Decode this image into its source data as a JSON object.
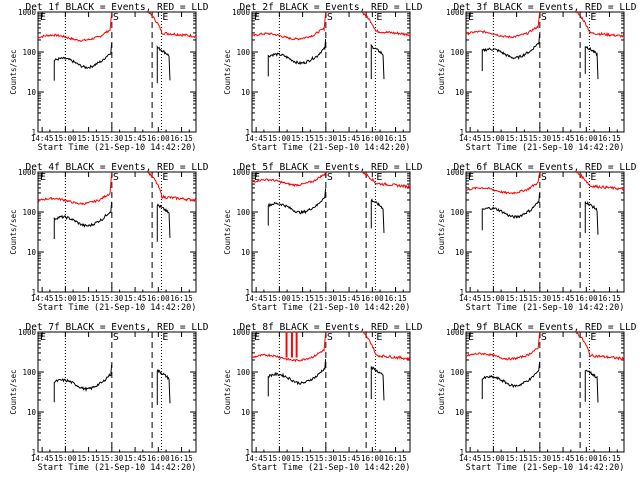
{
  "chart_data": {
    "type": "line",
    "x_axis": {
      "label": "Start Time (21-Sep-10 14:42:20)",
      "tick_labels": [
        "14:45",
        "15:00",
        "15:15",
        "15:30",
        "15:45",
        "16:00",
        "16:15"
      ],
      "tick_values_min": [
        2.67,
        17.67,
        32.67,
        47.67,
        62.67,
        77.67,
        92.67
      ],
      "range_min": [
        0,
        102
      ]
    },
    "y_axis": {
      "label": "Counts/sec",
      "scale": "log",
      "range": [
        1,
        1000
      ],
      "tick_labels": [
        "1",
        "10",
        "100",
        "1000"
      ]
    },
    "markers": {
      "eclipse_label": "E",
      "saa_label": "S",
      "dotted_min": [
        17.67,
        79.67
      ],
      "dashed_min": [
        47.67,
        73.67
      ]
    },
    "colors": {
      "events": "#000000",
      "lld": "#ff0000"
    },
    "panels": [
      {
        "title": "Det 1f BLACK = Events, RED = LLD",
        "events": {
          "base": 55,
          "peak": 130
        },
        "lld": {
          "base": 230,
          "post": 300
        }
      },
      {
        "title": "Det 2f BLACK = Events, RED = LLD",
        "events": {
          "base": 70,
          "peak": 140
        },
        "lld": {
          "base": 250,
          "post": 330
        }
      },
      {
        "title": "Det 3f BLACK = Events, RED = LLD",
        "events": {
          "base": 95,
          "peak": 140
        },
        "lld": {
          "base": 280,
          "post": 300
        }
      },
      {
        "title": "Det 4f BLACK = Events, RED = LLD",
        "events": {
          "base": 60,
          "peak": 150
        },
        "lld": {
          "base": 190,
          "post": 240
        }
      },
      {
        "title": "Det 5f BLACK = Events, RED = LLD",
        "events": {
          "base": 130,
          "peak": 200
        },
        "lld": {
          "base": 560,
          "post": 520
        }
      },
      {
        "title": "Det 6f BLACK = Events, RED = LLD",
        "events": {
          "base": 100,
          "peak": 180
        },
        "lld": {
          "base": 350,
          "post": 450
        }
      },
      {
        "title": "Det 7f BLACK = Events, RED = LLD",
        "events": {
          "base": 50,
          "peak": 110
        },
        "lld": null
      },
      {
        "title": "Det 8f BLACK = Events, RED = LLD",
        "events": {
          "base": 70,
          "peak": 130
        },
        "lld": {
          "base": 230,
          "post": 260,
          "spikes": true
        }
      },
      {
        "title": "Det 9f BLACK = Events, RED = LLD",
        "events": {
          "base": 60,
          "peak": 115
        },
        "lld": {
          "base": 250,
          "post": 260
        }
      }
    ]
  }
}
